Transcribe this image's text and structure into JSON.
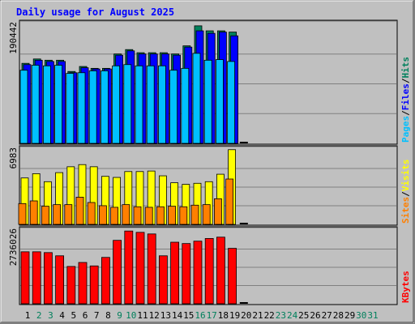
{
  "chart_data": [
    {
      "type": "bar",
      "title": "Daily usage for August 2025",
      "categories": [
        "1",
        "2",
        "3",
        "4",
        "5",
        "6",
        "7",
        "8",
        "9",
        "10",
        "11",
        "12",
        "13",
        "14",
        "15",
        "16",
        "17",
        "18",
        "19",
        "20",
        "21",
        "22",
        "23",
        "24",
        "25",
        "26",
        "27",
        "28",
        "29",
        "30",
        "31"
      ],
      "weekend_days": [
        "2",
        "3",
        "9",
        "10",
        "16",
        "17",
        "23",
        "24",
        "30",
        "31"
      ],
      "panels": [
        {
          "id": "hits",
          "ymax_label": "190442",
          "ymax": 190442,
          "ylabel_parts": [
            "Pages",
            "/",
            "Files",
            "/",
            "Hits"
          ],
          "series": [
            {
              "name": "Hits",
              "color": "#00805c",
              "values": [
                128000,
                135000,
                133000,
                133000,
                115000,
                123000,
                120000,
                120000,
                143000,
                150000,
                145000,
                145000,
                145000,
                143000,
                156000,
                188000,
                180000,
                180000,
                178000
              ]
            },
            {
              "name": "Files",
              "color": "#0000ff",
              "values": [
                126000,
                133000,
                131000,
                131000,
                113000,
                121000,
                119000,
                119000,
                141000,
                148000,
                143000,
                143000,
                143000,
                141000,
                154000,
                180000,
                176000,
                178000,
                172000
              ]
            },
            {
              "name": "Pages",
              "color": "#00c0ff",
              "values": [
                117000,
                125000,
                124000,
                125000,
                112000,
                113000,
                116000,
                116000,
                124000,
                126000,
                124000,
                124000,
                124000,
                117000,
                120000,
                144000,
                133000,
                134000,
                131000
              ]
            }
          ]
        },
        {
          "id": "visits",
          "ymax_label": "6983",
          "ymax": 6983,
          "ylabel_parts": [
            "Sites",
            "/",
            "Visits"
          ],
          "series": [
            {
              "name": "Visits",
              "color": "#ffff00",
              "values": [
                4350,
                4750,
                4000,
                4850,
                5400,
                5600,
                5400,
                4500,
                4400,
                4950,
                4950,
                5000,
                4550,
                3900,
                3750,
                3850,
                4000,
                4700,
                7000
              ]
            },
            {
              "name": "Sites",
              "color": "#ff8000",
              "values": [
                1950,
                2200,
                1700,
                1850,
                1850,
                2550,
                2050,
                1750,
                1600,
                1850,
                1650,
                1600,
                1650,
                1700,
                1650,
                1800,
                1850,
                2400,
                4250
              ]
            }
          ]
        },
        {
          "id": "kbytes",
          "ymax_label": "2736026",
          "ymax": 2736026,
          "ylabel_parts": [
            "KBytes"
          ],
          "series": [
            {
              "name": "KBytes",
              "color": "#ff0000",
              "values": [
                1950000,
                1950000,
                1920000,
                1800000,
                1400000,
                1550000,
                1420000,
                1740000,
                2380000,
                2730000,
                2680000,
                2620000,
                1800000,
                2310000,
                2260000,
                2350000,
                2450000,
                2500000,
                2080000
              ]
            }
          ]
        }
      ]
    }
  ],
  "colors": {
    "background": "#c0c0c0",
    "title": "#0000ff",
    "axis_text": "#000000",
    "weekend_text": "#00805c",
    "slash": "#000000"
  }
}
